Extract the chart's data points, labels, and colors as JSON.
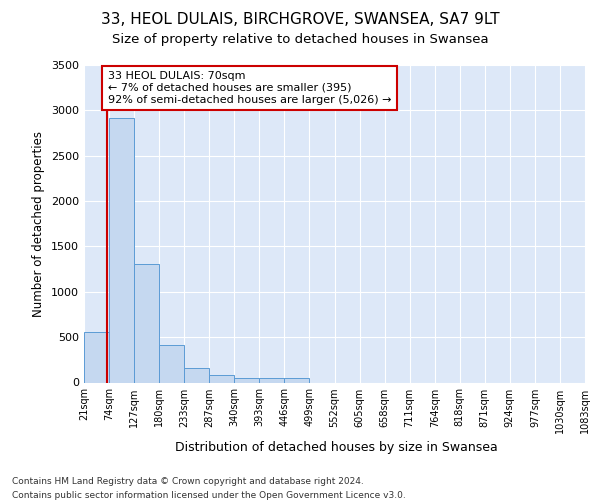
{
  "title1": "33, HEOL DULAIS, BIRCHGROVE, SWANSEA, SA7 9LT",
  "title2": "Size of property relative to detached houses in Swansea",
  "xlabel": "Distribution of detached houses by size in Swansea",
  "ylabel": "Number of detached properties",
  "footer1": "Contains HM Land Registry data © Crown copyright and database right 2024.",
  "footer2": "Contains public sector information licensed under the Open Government Licence v3.0.",
  "bin_labels": [
    "21sqm",
    "74sqm",
    "127sqm",
    "180sqm",
    "233sqm",
    "287sqm",
    "340sqm",
    "393sqm",
    "446sqm",
    "499sqm",
    "552sqm",
    "605sqm",
    "658sqm",
    "711sqm",
    "764sqm",
    "818sqm",
    "871sqm",
    "924sqm",
    "977sqm",
    "1030sqm",
    "1083sqm"
  ],
  "bar_values": [
    560,
    2920,
    1310,
    410,
    155,
    80,
    55,
    50,
    45,
    0,
    0,
    0,
    0,
    0,
    0,
    0,
    0,
    0,
    0,
    0
  ],
  "bar_color": "#c5d8f0",
  "bar_edge_color": "#5b9bd5",
  "subject_line_color": "#cc0000",
  "annotation_text": "33 HEOL DULAIS: 70sqm\n← 7% of detached houses are smaller (395)\n92% of semi-detached houses are larger (5,026) →",
  "annotation_box_color": "#ffffff",
  "annotation_box_edge_color": "#cc0000",
  "ylim": [
    0,
    3500
  ],
  "yticks": [
    0,
    500,
    1000,
    1500,
    2000,
    2500,
    3000,
    3500
  ],
  "background_color": "#dde8f8",
  "grid_color": "#ffffff",
  "title1_fontsize": 11,
  "title2_fontsize": 9.5
}
